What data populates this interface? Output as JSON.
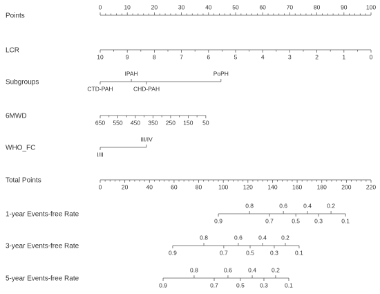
{
  "chart_data": {
    "type": "nomogram",
    "rows": [
      {
        "label": "Points",
        "ticks": [
          0,
          10,
          20,
          30,
          40,
          50,
          60,
          70,
          80,
          90,
          100
        ],
        "xlim": [
          0,
          100
        ],
        "minor_divisions": 5,
        "tick_labels": "top"
      },
      {
        "label": "LCR",
        "ticks": [
          10,
          9,
          8,
          7,
          6,
          5,
          4,
          3,
          2,
          1,
          0
        ],
        "positions": [
          0,
          10,
          20,
          30,
          40,
          50,
          60,
          70,
          80,
          90,
          100
        ],
        "axis": 0,
        "minor_divisions": 2
      },
      {
        "label": "Subgroups",
        "ticks": [
          "CTD-PAH",
          "IPAH",
          "CHD-PAH",
          "PoPH"
        ],
        "positions": [
          0,
          11.5,
          17.1,
          44.6
        ],
        "axis": 0,
        "alternate": true
      },
      {
        "label": "6MWD",
        "ticks": [
          650,
          550,
          450,
          350,
          250,
          150,
          50
        ],
        "positions": [
          0,
          6.5,
          13,
          19.5,
          26,
          32.5,
          39
        ],
        "axis": 0,
        "minor_divisions": 2
      },
      {
        "label": "WHO_FC",
        "ticks": [
          "I/II",
          "III/IV"
        ],
        "positions": [
          0,
          17.1
        ],
        "axis": 0,
        "alternate": true
      },
      {
        "label": "Total Points",
        "ticks": [
          0,
          20,
          40,
          60,
          80,
          100,
          120,
          140,
          160,
          180,
          200,
          220
        ],
        "xlim": [
          0,
          220
        ],
        "minor_divisions": 5
      },
      {
        "label": "1-year Events-free Rate",
        "ticks": [
          0.9,
          0.8,
          0.7,
          0.6,
          0.5,
          0.4,
          0.3,
          0.2,
          0.1
        ],
        "positions": [
          96,
          121.3,
          137.5,
          148.8,
          158.9,
          168.4,
          177.4,
          187.5,
          199.3
        ],
        "axis": 5,
        "alternate": true
      },
      {
        "label": "3-year Events-free Rate",
        "ticks": [
          0.9,
          0.8,
          0.7,
          0.6,
          0.5,
          0.4,
          0.3,
          0.2,
          0.1
        ],
        "positions": [
          58.9,
          84.2,
          100.4,
          112.2,
          121.8,
          131.9,
          141.4,
          150.4,
          161.6
        ],
        "axis": 5,
        "alternate": true
      },
      {
        "label": "5-year Events-free Rate",
        "ticks": [
          0.9,
          0.8,
          0.7,
          0.6,
          0.5,
          0.4,
          0.3,
          0.2,
          0.1
        ],
        "positions": [
          51.1,
          76.3,
          92.6,
          103.8,
          113.9,
          123.5,
          133,
          142.5,
          153.2
        ],
        "axis": 5,
        "alternate": true
      }
    ]
  }
}
